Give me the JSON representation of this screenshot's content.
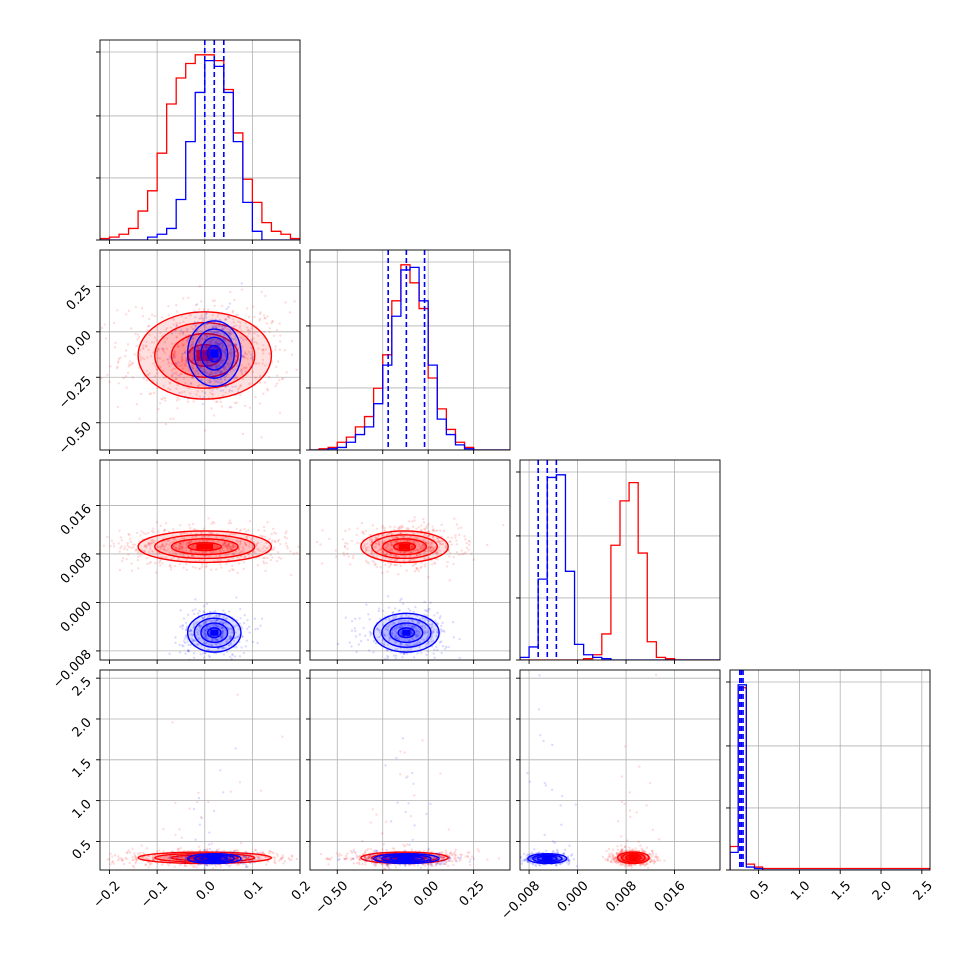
{
  "colors": {
    "series_a": "#ff0000",
    "series_b": "#0000ff"
  },
  "chart_data": {
    "type": "corner",
    "grid": true,
    "series": [
      {
        "color": "#ff0000"
      },
      {
        "color": "#0000ff"
      }
    ],
    "params": [
      {
        "range": [
          -0.22,
          0.2
        ],
        "ticks": [
          -0.2,
          -0.1,
          0.0,
          0.1,
          0.2
        ],
        "tick_labels": [
          "−0.2",
          "−0.1",
          "0.0",
          "0.1",
          "0.2"
        ]
      },
      {
        "range": [
          -0.65,
          0.45
        ],
        "ticks": [
          -0.5,
          -0.25,
          0.0,
          0.25
        ],
        "tick_labels": [
          "−0.50",
          "−0.25",
          "0.00",
          "0.25"
        ]
      },
      {
        "range": [
          -0.0095,
          0.0235
        ],
        "ticks": [
          -0.008,
          0.0,
          0.008,
          0.016
        ],
        "tick_labels": [
          "−0.008",
          "0.000",
          "0.008",
          "0.016"
        ]
      },
      {
        "range": [
          0.15,
          2.6
        ],
        "ticks": [
          0.5,
          1.0,
          1.5,
          2.0,
          2.5
        ],
        "tick_labels": [
          "0.5",
          "1.0",
          "1.5",
          "2.0",
          "2.5"
        ]
      }
    ],
    "quantiles": {
      "p0": [
        0.0,
        0.02,
        0.04
      ],
      "p1": [
        -0.22,
        -0.12,
        -0.02
      ],
      "p2": [
        -0.0065,
        -0.005,
        -0.0035
      ],
      "p3": [
        0.27,
        0.29,
        0.31
      ]
    },
    "histograms": [
      {
        "edges": [
          -0.22,
          -0.2,
          -0.18,
          -0.16,
          -0.14,
          -0.12,
          -0.1,
          -0.08,
          -0.06,
          -0.04,
          -0.02,
          0.0,
          0.02,
          0.04,
          0.06,
          0.08,
          0.1,
          0.12,
          0.14,
          0.16,
          0.18,
          0.2
        ],
        "red": [
          0.5,
          1,
          2,
          4,
          10,
          17,
          30,
          47,
          56,
          61,
          64,
          64,
          62,
          52,
          37,
          21,
          13,
          6,
          3,
          2,
          0.5
        ],
        "blue": [
          0,
          0,
          0,
          0,
          0,
          1,
          2,
          4,
          14,
          34,
          51,
          62,
          60,
          51,
          34,
          13,
          3,
          0,
          0,
          0,
          0
        ]
      },
      {
        "edges": [
          -0.65,
          -0.6,
          -0.55,
          -0.5,
          -0.45,
          -0.4,
          -0.35,
          -0.3,
          -0.25,
          -0.2,
          -0.15,
          -0.1,
          -0.05,
          0.0,
          0.05,
          0.1,
          0.15,
          0.2,
          0.25,
          0.3,
          0.35,
          0.4,
          0.45
        ],
        "red": [
          0,
          0.5,
          1,
          3,
          5,
          9,
          13,
          24,
          37,
          58,
          72,
          65,
          55,
          28,
          16,
          8,
          3,
          1,
          0,
          0,
          0,
          0
        ],
        "blue": [
          0,
          0,
          0.5,
          1,
          3,
          6,
          9,
          18,
          33,
          52,
          70,
          71,
          58,
          33,
          12,
          6,
          2,
          0.5,
          0,
          0,
          0,
          0
        ]
      },
      {
        "edges": [
          -0.0095,
          -0.008,
          -0.0065,
          -0.005,
          -0.0035,
          -0.002,
          -0.0005,
          0.001,
          0.0025,
          0.004,
          0.0055,
          0.007,
          0.0085,
          0.01,
          0.0115,
          0.013,
          0.0145,
          0.016,
          0.0175,
          0.019,
          0.0205,
          0.022,
          0.0235
        ],
        "red": [
          0,
          0,
          0,
          0,
          0,
          0,
          0,
          0.5,
          2,
          10,
          44,
          61,
          68,
          41,
          7,
          1,
          0.5,
          0,
          0,
          0,
          0,
          0
        ],
        "blue": [
          1,
          5,
          31,
          70,
          71,
          34,
          6,
          2,
          1,
          0.5,
          0,
          0,
          0,
          0,
          0,
          0,
          0,
          0,
          0,
          0,
          0,
          0
        ]
      },
      {
        "edges": [
          0.15,
          0.25,
          0.35,
          0.45,
          0.55,
          0.65,
          0.75,
          0.85,
          0.95,
          1.05,
          1.15,
          1.25,
          1.35,
          1.45,
          1.55,
          1.65,
          1.75,
          1.85,
          1.95,
          2.05,
          2.15,
          2.25,
          2.35,
          2.45,
          2.55,
          2.6
        ],
        "red": [
          8,
          62,
          2,
          1,
          0.5,
          0.5,
          0.5,
          0.5,
          0.5,
          0.5,
          0.5,
          0.5,
          0.5,
          0.5,
          0.5,
          0.5,
          0.5,
          0.5,
          0.5,
          0.5,
          0.5,
          0.5,
          0.5,
          0.5,
          0.5
        ],
        "blue": [
          6,
          63,
          1,
          0.5,
          0,
          0,
          0,
          0,
          0,
          0,
          0,
          0,
          0,
          0,
          0,
          0,
          0,
          0,
          0,
          0,
          0,
          0,
          0,
          0,
          0
        ]
      }
    ],
    "clusters": [
      {
        "red": {
          "mean": [
            0.0,
            -0.13
          ],
          "std": [
            0.07,
            0.12
          ]
        },
        "blue": {
          "mean": [
            0.02,
            -0.12
          ],
          "std": [
            0.028,
            0.09
          ]
        }
      },
      {
        "red": {
          "mean": [
            0.0,
            0.0092
          ],
          "std": [
            0.07,
            0.0013
          ]
        },
        "blue": {
          "mean": [
            0.02,
            -0.005
          ],
          "std": [
            0.028,
            0.0016
          ]
        }
      },
      {
        "red": {
          "mean": [
            -0.13,
            0.0092
          ],
          "std": [
            0.12,
            0.0013
          ]
        },
        "blue": {
          "mean": [
            -0.12,
            -0.005
          ],
          "std": [
            0.09,
            0.0016
          ]
        }
      },
      {
        "red": {
          "mean": [
            0.0,
            0.3
          ],
          "std": [
            0.07,
            0.035
          ]
        },
        "blue": {
          "mean": [
            0.02,
            0.29
          ],
          "std": [
            0.028,
            0.03
          ]
        }
      },
      {
        "red": {
          "mean": [
            -0.13,
            0.3
          ],
          "std": [
            0.12,
            0.035
          ]
        },
        "blue": {
          "mean": [
            -0.12,
            0.29
          ],
          "std": [
            0.09,
            0.03
          ]
        }
      },
      {
        "red": {
          "mean": [
            0.0092,
            0.3
          ],
          "std": [
            0.0013,
            0.035
          ]
        },
        "blue": {
          "mean": [
            -0.005,
            0.29
          ],
          "std": [
            0.0016,
            0.03
          ]
        }
      }
    ]
  }
}
